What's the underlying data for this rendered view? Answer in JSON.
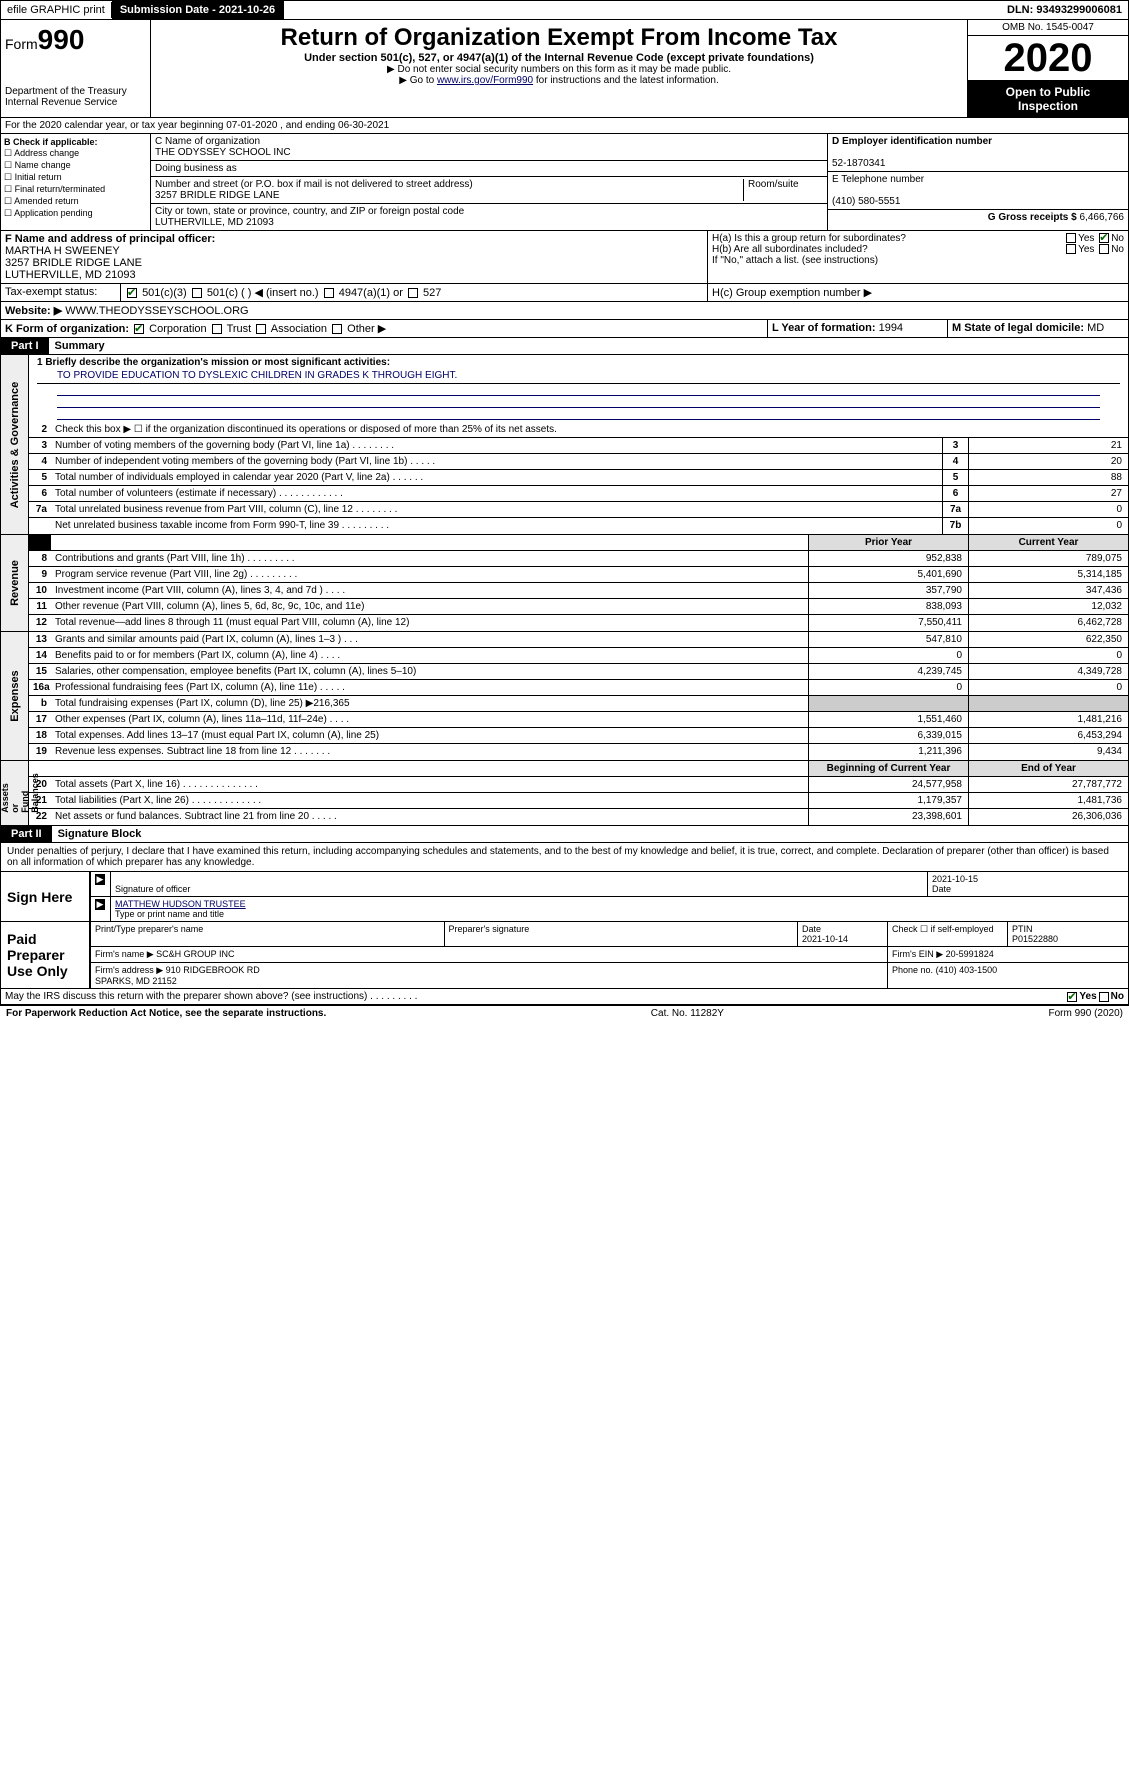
{
  "topbar": {
    "efile": "efile GRAPHIC print",
    "submission": "Submission Date - 2021-10-26",
    "dln": "DLN: 93493299006081"
  },
  "header": {
    "form_label": "Form",
    "form_num": "990",
    "dept": "Department of the Treasury\nInternal Revenue Service",
    "title": "Return of Organization Exempt From Income Tax",
    "subtitle": "Under section 501(c), 527, or 4947(a)(1) of the Internal Revenue Code (except private foundations)",
    "note1": "▶ Do not enter social security numbers on this form as it may be made public.",
    "note2_pre": "▶ Go to ",
    "note2_link": "www.irs.gov/Form990",
    "note2_post": " for instructions and the latest information.",
    "omb": "OMB No. 1545-0047",
    "year": "2020",
    "open": "Open to Public\nInspection"
  },
  "section_a": "For the 2020 calendar year, or tax year beginning 07-01-2020   , and ending 06-30-2021",
  "box_b": {
    "label": "B Check if applicable:",
    "items": [
      "Address change",
      "Name change",
      "Initial return",
      "Final return/terminated",
      "Amended return",
      "Application pending"
    ]
  },
  "box_c": {
    "name_label": "C Name of organization",
    "name": "THE ODYSSEY SCHOOL INC",
    "dba_label": "Doing business as",
    "street_label": "Number and street (or P.O. box if mail is not delivered to street address)",
    "room_label": "Room/suite",
    "street": "3257 BRIDLE RIDGE LANE",
    "city_label": "City or town, state or province, country, and ZIP or foreign postal code",
    "city": "LUTHERVILLE, MD  21093"
  },
  "box_d": {
    "label": "D Employer identification number",
    "value": "52-1870341"
  },
  "box_e": {
    "label": "E Telephone number",
    "value": "(410) 580-5551"
  },
  "box_g": {
    "label": "G Gross receipts $",
    "value": "6,466,766"
  },
  "box_f": {
    "label": "F  Name and address of principal officer:",
    "name": "MARTHA H SWEENEY",
    "addr1": "3257 BRIDLE RIDGE LANE",
    "addr2": "LUTHERVILLE, MD  21093"
  },
  "box_h": {
    "ha": "H(a)  Is this a group return for subordinates?",
    "hb": "H(b)  Are all subordinates included?",
    "hb_note": "If \"No,\" attach a list. (see instructions)",
    "hc": "H(c)  Group exemption number ▶",
    "yes": "Yes",
    "no": "No"
  },
  "line_i": {
    "label": "Tax-exempt status:",
    "opts": [
      "501(c)(3)",
      "501(c) (  ) ◀ (insert no.)",
      "4947(a)(1) or",
      "527"
    ]
  },
  "line_j": {
    "label": "Website: ▶",
    "value": "WWW.THEODYSSEYSCHOOL.ORG"
  },
  "line_k": {
    "label": "K Form of organization:",
    "opts": [
      "Corporation",
      "Trust",
      "Association",
      "Other ▶"
    ]
  },
  "line_l": {
    "label": "L Year of formation:",
    "value": "1994"
  },
  "line_m": {
    "label": "M State of legal domicile:",
    "value": "MD"
  },
  "part1": {
    "hdr": "Part I",
    "title": "Summary"
  },
  "mission": {
    "q": "1  Briefly describe the organization's mission or most significant activities:",
    "a": "TO PROVIDE EDUCATION TO DYSLEXIC CHILDREN IN GRADES K THROUGH EIGHT."
  },
  "governance": {
    "label": "Activities & Governance",
    "l2": "Check this box ▶ ☐  if the organization discontinued its operations or disposed of more than 25% of its net assets.",
    "lines": [
      {
        "n": "3",
        "t": "Number of voting members of the governing body (Part VI, line 1a)  .   .   .   .   .   .   .   .",
        "box": "3",
        "v": "21"
      },
      {
        "n": "4",
        "t": "Number of independent voting members of the governing body (Part VI, line 1b)  .   .   .   .   .",
        "box": "4",
        "v": "20"
      },
      {
        "n": "5",
        "t": "Total number of individuals employed in calendar year 2020 (Part V, line 2a)  .   .   .   .   .   .",
        "box": "5",
        "v": "88"
      },
      {
        "n": "6",
        "t": "Total number of volunteers (estimate if necessary)  .   .   .   .   .   .   .   .   .   .   .   .",
        "box": "6",
        "v": "27"
      },
      {
        "n": "7a",
        "t": "Total unrelated business revenue from Part VIII, column (C), line 12  .   .   .   .   .   .   .   .",
        "box": "7a",
        "v": "0"
      },
      {
        "n": "",
        "t": "Net unrelated business taxable income from Form 990-T, line 39  .   .   .   .   .   .   .   .   .",
        "box": "7b",
        "v": "0"
      }
    ]
  },
  "cols": {
    "prior": "Prior Year",
    "current": "Current Year",
    "beg": "Beginning of Current Year",
    "end": "End of Year"
  },
  "revenue": {
    "label": "Revenue",
    "lines": [
      {
        "n": "8",
        "t": "Contributions and grants (Part VIII, line 1h)  .   .   .   .   .   .   .   .   .",
        "p": "952,838",
        "c": "789,075"
      },
      {
        "n": "9",
        "t": "Program service revenue (Part VIII, line 2g)  .   .   .   .   .   .   .   .   .",
        "p": "5,401,690",
        "c": "5,314,185"
      },
      {
        "n": "10",
        "t": "Investment income (Part VIII, column (A), lines 3, 4, and 7d )  .   .   .   .",
        "p": "357,790",
        "c": "347,436"
      },
      {
        "n": "11",
        "t": "Other revenue (Part VIII, column (A), lines 5, 6d, 8c, 9c, 10c, and 11e)",
        "p": "838,093",
        "c": "12,032"
      },
      {
        "n": "12",
        "t": "Total revenue—add lines 8 through 11 (must equal Part VIII, column (A), line 12)",
        "p": "7,550,411",
        "c": "6,462,728"
      }
    ]
  },
  "expenses": {
    "label": "Expenses",
    "lines": [
      {
        "n": "13",
        "t": "Grants and similar amounts paid (Part IX, column (A), lines 1–3 )  .   .   .",
        "p": "547,810",
        "c": "622,350"
      },
      {
        "n": "14",
        "t": "Benefits paid to or for members (Part IX, column (A), line 4)  .   .   .   .",
        "p": "0",
        "c": "0"
      },
      {
        "n": "15",
        "t": "Salaries, other compensation, employee benefits (Part IX, column (A), lines 5–10)",
        "p": "4,239,745",
        "c": "4,349,728"
      },
      {
        "n": "16a",
        "t": "Professional fundraising fees (Part IX, column (A), line 11e)  .   .   .   .   .",
        "p": "0",
        "c": "0"
      },
      {
        "n": "b",
        "t": "Total fundraising expenses (Part IX, column (D), line 25) ▶216,365",
        "p": "",
        "c": "",
        "grey": true
      },
      {
        "n": "17",
        "t": "Other expenses (Part IX, column (A), lines 11a–11d, 11f–24e)  .   .   .   .",
        "p": "1,551,460",
        "c": "1,481,216"
      },
      {
        "n": "18",
        "t": "Total expenses. Add lines 13–17 (must equal Part IX, column (A), line 25)",
        "p": "6,339,015",
        "c": "6,453,294"
      },
      {
        "n": "19",
        "t": "Revenue less expenses. Subtract line 18 from line 12  .   .   .   .   .   .   .",
        "p": "1,211,396",
        "c": "9,434"
      }
    ]
  },
  "netassets": {
    "label": "Net Assets or\nFund Balances",
    "lines": [
      {
        "n": "20",
        "t": "Total assets (Part X, line 16)  .   .   .   .   .   .   .   .   .   .   .   .   .   .",
        "p": "24,577,958",
        "c": "27,787,772"
      },
      {
        "n": "21",
        "t": "Total liabilities (Part X, line 26)  .   .   .   .   .   .   .   .   .   .   .   .   .",
        "p": "1,179,357",
        "c": "1,481,736"
      },
      {
        "n": "22",
        "t": "Net assets or fund balances. Subtract line 21 from line 20  .   .   .   .   .",
        "p": "23,398,601",
        "c": "26,306,036"
      }
    ]
  },
  "part2": {
    "hdr": "Part II",
    "title": "Signature Block"
  },
  "perjury": "Under penalties of perjury, I declare that I have examined this return, including accompanying schedules and statements, and to the best of my knowledge and belief, it is true, correct, and complete. Declaration of preparer (other than officer) is based on all information of which preparer has any knowledge.",
  "sign": {
    "here": "Sign Here",
    "date": "2021-10-15",
    "date_lbl": "Date",
    "sig_lbl": "Signature of officer",
    "name": "MATTHEW HUDSON  TRUSTEE",
    "name_lbl": "Type or print name and title"
  },
  "paid": {
    "label": "Paid Preparer Use Only",
    "h1": "Print/Type preparer's name",
    "h2": "Preparer's signature",
    "h3": "Date",
    "h4": "Check ☐ if self-employed",
    "h5": "PTIN",
    "date": "2021-10-14",
    "ptin": "P01522880",
    "firm_lbl": "Firm's name   ▶",
    "firm": "SC&H GROUP INC",
    "ein_lbl": "Firm's EIN ▶",
    "ein": "20-5991824",
    "addr_lbl": "Firm's address ▶",
    "addr": "910 RIDGEBROOK RD\nSPARKS, MD  21152",
    "phone_lbl": "Phone no.",
    "phone": "(410) 403-1500"
  },
  "discuss": {
    "q": "May the IRS discuss this return with the preparer shown above? (see instructions)   .   .   .   .   .   .   .   .   .",
    "yes": "Yes",
    "no": "No"
  },
  "footer": {
    "left": "For Paperwork Reduction Act Notice, see the separate instructions.",
    "mid": "Cat. No. 11282Y",
    "right": "Form 990 (2020)"
  }
}
